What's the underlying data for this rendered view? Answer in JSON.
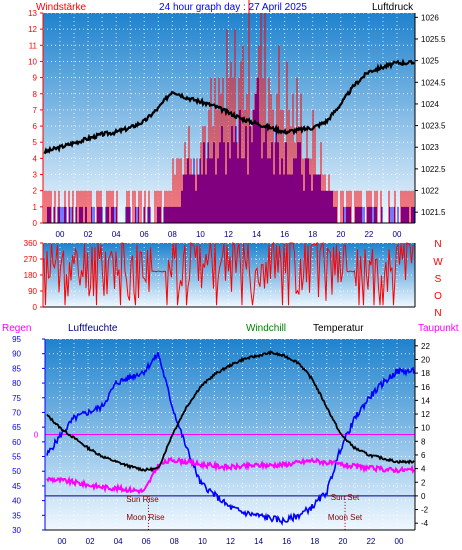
{
  "colors": {
    "red": "#ff0000",
    "blue": "#0000ff",
    "green": "#008000",
    "black": "#000000",
    "magenta": "#ff00ff",
    "darkred": "#8b0000",
    "navy": "#000080",
    "plot_top": "#1e82cd",
    "plot_bottom": "#f0f8ff"
  },
  "chart_data": [
    {
      "type": "line",
      "title": "24 hour graph day : 27 April 2025",
      "left_label": "Windstärke",
      "right_label": "Luftdruck",
      "x_ticks": [
        "00",
        "02",
        "04",
        "06",
        "08",
        "10",
        "12",
        "14",
        "16",
        "18",
        "20",
        "22",
        "00"
      ],
      "left_ticks": [
        "0",
        "1",
        "2",
        "3",
        "4",
        "5",
        "6",
        "7",
        "8",
        "9",
        "10",
        "11",
        "12",
        "13"
      ],
      "right_ticks": [
        "1021.5",
        "1022",
        "1022.5",
        "1023",
        "1023.5",
        "1024",
        "1024.5",
        "1025",
        "1025.5",
        "1026"
      ],
      "ylim_left": [
        0,
        13
      ],
      "ylim_right": [
        1021.25,
        1026.1
      ],
      "grid": true,
      "series": [
        {
          "name": "Luftdruck",
          "color": "black",
          "x": [
            -1,
            0,
            1,
            2,
            3,
            4,
            5,
            6,
            7,
            8,
            9,
            10,
            11,
            12,
            13,
            14,
            15,
            16,
            17,
            18,
            19,
            20,
            21,
            22,
            23,
            24
          ],
          "y": [
            1022.9,
            1023.0,
            1023.1,
            1023.2,
            1023.3,
            1023.35,
            1023.45,
            1023.6,
            1023.9,
            1024.3,
            1024.15,
            1024.05,
            1023.95,
            1023.8,
            1023.65,
            1023.55,
            1023.45,
            1023.35,
            1023.4,
            1023.45,
            1023.6,
            1024.0,
            1024.45,
            1024.75,
            1024.85,
            1024.95
          ]
        },
        {
          "name": "Windstärke (gust)",
          "color": "red",
          "x": [
            -1,
            0,
            1,
            2,
            3,
            4,
            5,
            6,
            7,
            7.5,
            8,
            9,
            10,
            11,
            12,
            13,
            14,
            15,
            16,
            17,
            18,
            19,
            20,
            21,
            22,
            23,
            24
          ],
          "y": [
            2,
            2,
            2,
            2,
            2,
            2,
            2,
            2,
            2,
            2,
            4,
            6,
            7,
            8,
            10,
            11,
            13,
            11,
            9,
            8,
            6,
            3,
            2,
            2,
            2,
            2,
            2
          ]
        },
        {
          "name": "Windstärke (mean)",
          "color": "blue",
          "x": [
            -1,
            0,
            1,
            2,
            3,
            4,
            5,
            6,
            7,
            8,
            9,
            10,
            11,
            12,
            13,
            14,
            15,
            16,
            17,
            18,
            19,
            20,
            21,
            22,
            23,
            24
          ],
          "y": [
            1,
            1,
            1,
            1,
            1,
            1,
            1,
            1,
            1,
            2,
            3,
            4,
            4,
            5,
            6,
            7,
            6,
            5,
            4,
            3,
            2,
            1,
            1,
            1,
            1,
            1
          ]
        }
      ]
    },
    {
      "type": "line",
      "left_ticks": [
        "0",
        "90",
        "180",
        "270",
        "360"
      ],
      "right_letters": [
        "N",
        "W",
        "S",
        "O",
        "N"
      ],
      "ylim": [
        0,
        360
      ],
      "grid": true,
      "series": [
        {
          "name": "Windrichtung",
          "color": "red",
          "x": [
            -1,
            0,
            1,
            2,
            3,
            4,
            5,
            6,
            7,
            8,
            9,
            10,
            11,
            12,
            13,
            14,
            15,
            16,
            17,
            18,
            19,
            20,
            21,
            22,
            23,
            24
          ],
          "y": [
            220,
            250,
            180,
            230,
            200,
            260,
            210,
            200,
            200,
            200,
            280,
            240,
            260,
            250,
            270,
            250,
            240,
            260,
            220,
            250,
            200,
            250,
            220,
            210,
            210,
            230
          ]
        }
      ]
    },
    {
      "type": "line",
      "legend": [
        "Regen",
        "Luftfeuchte",
        "Windchill",
        "Temperatur",
        "Taupunkt"
      ],
      "x_ticks": [
        "00",
        "02",
        "04",
        "06",
        "08",
        "10",
        "12",
        "14",
        "16",
        "18",
        "20",
        "22",
        "00"
      ],
      "left_ticks": [
        "30",
        "35",
        "40",
        "45",
        "50",
        "55",
        "60",
        "65",
        "70",
        "75",
        "80",
        "85",
        "90",
        "95"
      ],
      "right_ticks": [
        "-4",
        "-2",
        "0",
        "2",
        "4",
        "6",
        "8",
        "10",
        "12",
        "14",
        "16",
        "18",
        "20",
        "22"
      ],
      "zero_label": "0",
      "annotations": [
        "Sun Rise",
        "Sun Set",
        "Moon Rise",
        "Moon Set"
      ],
      "ylim_left": [
        30,
        95
      ],
      "ylim_right": [
        -5,
        23
      ],
      "grid": true,
      "series": [
        {
          "name": "Luftfeuchte",
          "color": "blue",
          "x": [
            -1,
            0,
            1,
            2,
            3,
            4,
            5,
            6,
            7,
            8,
            9,
            10,
            11,
            12,
            13,
            14,
            15,
            16,
            17,
            18,
            19,
            20,
            21,
            22,
            23,
            24
          ],
          "y": [
            55,
            62,
            68,
            70,
            72,
            80,
            82,
            84,
            90,
            72,
            58,
            46,
            42,
            38,
            36,
            35,
            34,
            33,
            35,
            38,
            43,
            58,
            68,
            75,
            80,
            84
          ]
        },
        {
          "name": "Temperatur",
          "color": "black",
          "x": [
            -1,
            0,
            1,
            2,
            3,
            4,
            5,
            6,
            7,
            8,
            9,
            10,
            11,
            12,
            13,
            14,
            15,
            16,
            17,
            18,
            19,
            20,
            21,
            22,
            23,
            24
          ],
          "y": [
            12,
            10,
            8.5,
            7,
            5.8,
            5,
            4.3,
            3.8,
            4,
            9,
            13,
            16,
            17.8,
            19,
            20,
            20.5,
            21,
            20.5,
            19.5,
            17,
            13,
            9,
            7,
            6,
            5.5,
            5
          ]
        },
        {
          "name": "Taupunkt",
          "color": "magenta",
          "x": [
            -1,
            0,
            1,
            2,
            3,
            4,
            5,
            6,
            7,
            8,
            9,
            10,
            11,
            12,
            13,
            14,
            15,
            16,
            17,
            18,
            19,
            20,
            21,
            22,
            23,
            24
          ],
          "y": [
            2.5,
            2.3,
            2.0,
            1.6,
            1.3,
            1.1,
            0.9,
            0.7,
            4.5,
            5.3,
            5.0,
            4.6,
            4.4,
            4.2,
            4.3,
            4.5,
            4.5,
            4.6,
            4.9,
            5.2,
            4.9,
            4.6,
            4.3,
            4.1,
            3.9,
            3.8
          ]
        }
      ]
    }
  ]
}
